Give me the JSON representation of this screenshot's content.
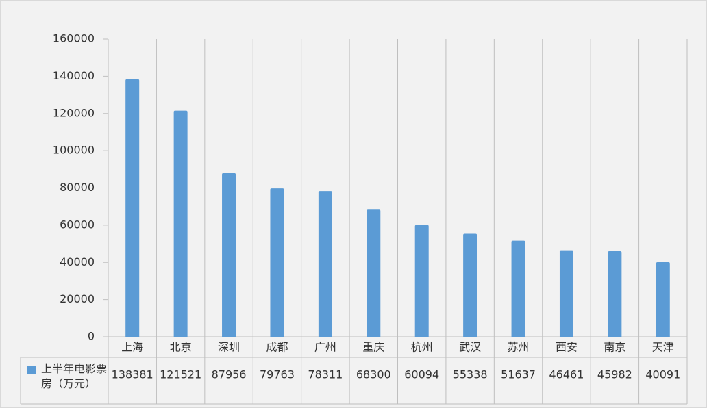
{
  "chart_data": {
    "type": "bar",
    "categories": [
      "上海",
      "北京",
      "深圳",
      "成都",
      "广州",
      "重庆",
      "杭州",
      "武汉",
      "苏州",
      "西安",
      "南京",
      "天津"
    ],
    "series": [
      {
        "name": "上半年电影票房（万元）",
        "color": "#5b9bd5",
        "values": [
          138381,
          121521,
          87956,
          79763,
          78311,
          68300,
          60094,
          55338,
          51637,
          46461,
          45982,
          40091
        ]
      }
    ],
    "ylim": [
      0,
      160000
    ],
    "yticks": [
      0,
      20000,
      40000,
      60000,
      80000,
      100000,
      120000,
      140000,
      160000
    ],
    "data_table": true
  }
}
